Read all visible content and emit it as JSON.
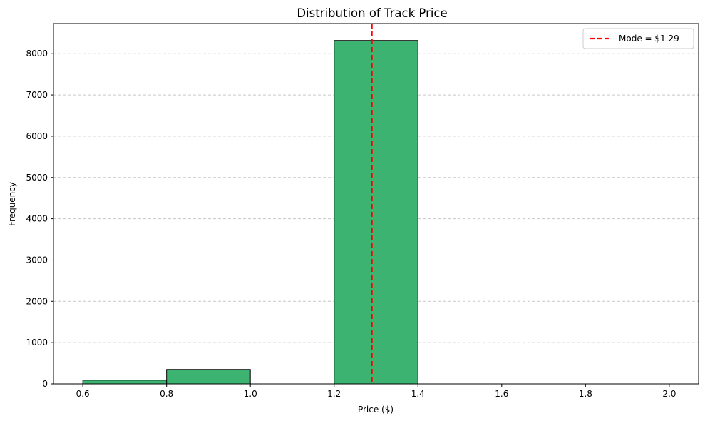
{
  "chart_data": {
    "type": "bar",
    "title": "Distribution of Track Price",
    "xlabel": "Price ($)",
    "ylabel": "Frequency",
    "xlim": [
      0.53,
      2.07
    ],
    "ylim": [
      0,
      8730
    ],
    "xticks": [
      0.6,
      0.8,
      1.0,
      1.2,
      1.4,
      1.6,
      1.8,
      2.0
    ],
    "xtick_labels": [
      "0.6",
      "0.8",
      "1.0",
      "1.2",
      "1.4",
      "1.6",
      "1.8",
      "2.0"
    ],
    "yticks": [
      0,
      1000,
      2000,
      3000,
      4000,
      5000,
      6000,
      7000,
      8000
    ],
    "ytick_labels": [
      "0",
      "1000",
      "2000",
      "3000",
      "4000",
      "5000",
      "6000",
      "7000",
      "8000"
    ],
    "bins": [
      {
        "x0": 0.6,
        "x1": 0.8,
        "value": 90
      },
      {
        "x0": 0.8,
        "x1": 1.0,
        "value": 350
      },
      {
        "x0": 1.0,
        "x1": 1.2,
        "value": 0
      },
      {
        "x0": 1.2,
        "x1": 1.4,
        "value": 8320
      },
      {
        "x0": 1.4,
        "x1": 1.6,
        "value": 0
      },
      {
        "x0": 1.6,
        "x1": 1.8,
        "value": 0
      },
      {
        "x0": 1.8,
        "x1": 2.0,
        "value": 0
      }
    ],
    "bar_color": "#3cb371",
    "bar_edge_color": "#000000",
    "grid": {
      "axis": "y",
      "style": "dashed",
      "color": "#c8c8c8"
    },
    "mode_line": {
      "x": 1.29,
      "color": "#ff0000",
      "style": "dashed",
      "label": "Mode = $1.29"
    },
    "legend": {
      "position": "top-right",
      "entries": [
        "Mode = $1.29"
      ]
    }
  }
}
